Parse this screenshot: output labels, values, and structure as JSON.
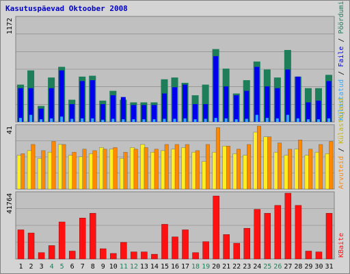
{
  "title": "Kasutuspäevad Oktoober 2008",
  "colors": {
    "background": "#d4d4d4",
    "plot": "#c0c0c0",
    "grid": "#808080",
    "title": "#0000cc",
    "hits": "#1e7e5a",
    "files": "#0000ee",
    "pages": "#33aaff",
    "visits": "#ff8800",
    "sites": "#ffee22",
    "kbytes": "#ff1111",
    "weekend_label": "#1e7e5a",
    "weekday_label": "#000000"
  },
  "legend_top": {
    "hits": "Pöördumisi",
    "sep1": " / ",
    "files": "Faile",
    "sep2": " / ",
    "pages": "Külastatud"
  },
  "legend_mid": {
    "sites": "Külastajaid",
    "sep": " / ",
    "visits": "Arvuteid"
  },
  "legend_bottom": {
    "kbytes": "KBaite"
  },
  "chart_data": {
    "type": "bar",
    "categories": [
      "1",
      "2",
      "3",
      "4",
      "5",
      "6",
      "7",
      "8",
      "9",
      "10",
      "11",
      "12",
      "13",
      "14",
      "15",
      "16",
      "17",
      "18",
      "19",
      "20",
      "21",
      "22",
      "23",
      "24",
      "25",
      "26",
      "27",
      "28",
      "29",
      "30",
      "31"
    ],
    "weekend_days": [
      "4",
      "5",
      "11",
      "12",
      "18",
      "19",
      "25",
      "26"
    ],
    "panels": [
      {
        "name": "top",
        "ymax_label": "1172",
        "ylim": [
          0,
          1172
        ],
        "series": [
          {
            "name": "Pöördumisi",
            "color_key": "hits",
            "values": [
              420,
              580,
              180,
              500,
              620,
              250,
              510,
              520,
              240,
              350,
              250,
              220,
              220,
              220,
              480,
              500,
              440,
              300,
              420,
              820,
              600,
              320,
              470,
              680,
              590,
              500,
              810,
              510,
              380,
              380,
              530
            ]
          },
          {
            "name": "Faile",
            "color_key": "files",
            "values": [
              380,
              380,
              150,
              380,
              580,
              200,
              460,
              470,
              200,
              300,
              280,
              190,
              190,
              190,
              320,
              390,
              420,
              200,
              200,
              740,
              400,
              300,
              350,
              620,
              400,
              380,
              590,
              510,
              220,
              240,
              460
            ]
          },
          {
            "name": "Külastatud",
            "color_key": "pages",
            "values": [
              45,
              80,
              30,
              40,
              60,
              35,
              40,
              40,
              25,
              35,
              30,
              30,
              30,
              30,
              35,
              35,
              40,
              30,
              35,
              45,
              40,
              30,
              35,
              80,
              45,
              40,
              80,
              40,
              30,
              30,
              40
            ]
          }
        ]
      },
      {
        "name": "middle",
        "ymax_label": "41",
        "ylim": [
          0,
          41
        ],
        "series": [
          {
            "name": "Arvuteid",
            "color_key": "visits",
            "values": [
              23,
              29,
              25,
              31,
              29,
              24,
              26,
              25,
              26,
              27,
              24,
              26,
              27,
              26,
              29,
              29,
              29,
              25,
              29,
              40,
              28,
              26,
              29,
              41,
              34,
              30,
              26,
              32,
              26,
              29,
              31
            ]
          },
          {
            "name": "Külastajaid",
            "color_key": "sites",
            "values": [
              22,
              25,
              20,
              24,
              29,
              22,
              21,
              23,
              27,
              26,
              20,
              27,
              29,
              24,
              25,
              26,
              27,
              24,
              18,
              24,
              28,
              23,
              22,
              37,
              34,
              24,
              22,
              26,
              22,
              24,
              23
            ]
          }
        ]
      },
      {
        "name": "bottom",
        "ymax_label": "41764",
        "ylim": [
          0,
          41764
        ],
        "series": [
          {
            "name": "KBaite",
            "color_key": "kbytes",
            "values": [
              18500,
              16500,
              4000,
              8500,
              23500,
              5000,
              26000,
              29000,
              6500,
              3500,
              10500,
              4500,
              4500,
              3000,
              22000,
              14000,
              18500,
              4000,
              11000,
              40000,
              15500,
              10000,
              19500,
              31500,
              29000,
              34000,
              41764,
              34000,
              5000,
              4500,
              29000
            ]
          }
        ]
      }
    ]
  }
}
